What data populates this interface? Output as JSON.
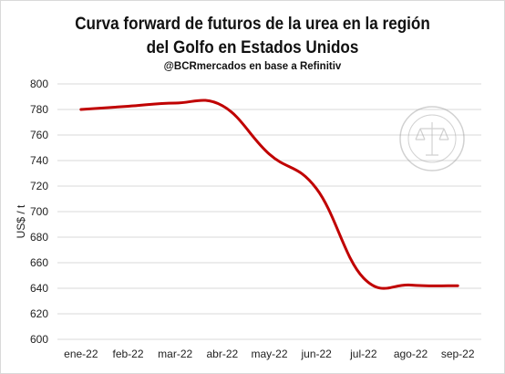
{
  "chart_data": {
    "type": "line",
    "title_line1": "Curva forward de futuros de la urea en la región",
    "title_line2": "del Golfo en Estados Unidos",
    "subtitle": "@BCRmercados en base a Refinitiv",
    "xlabel": "",
    "ylabel": "US$ / t",
    "categories": [
      "ene-22",
      "feb-22",
      "mar-22",
      "abr-22",
      "may-22",
      "jun-22",
      "jul-22",
      "ago-22",
      "sep-22"
    ],
    "yticks": [
      "600",
      "620",
      "640",
      "660",
      "680",
      "700",
      "720",
      "740",
      "760",
      "780",
      "800"
    ],
    "ylim": [
      600,
      800
    ],
    "grid": true,
    "legend": "none",
    "series": [
      {
        "color": "#c00000",
        "values": [
          780,
          782.5,
          785,
          783,
          745,
          718,
          648,
          642.5,
          642
        ]
      }
    ]
  }
}
